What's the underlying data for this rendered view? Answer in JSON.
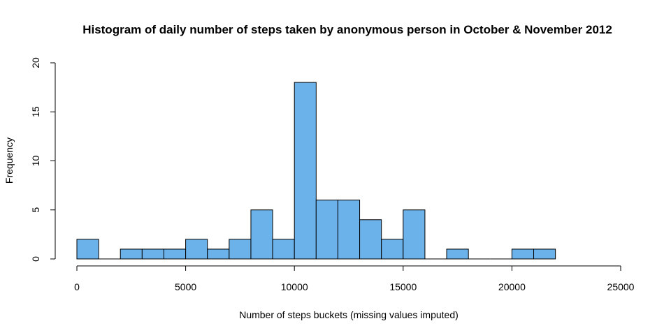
{
  "chart_data": {
    "type": "bar",
    "title": "Histogram of daily number of steps taken by anonymous person in October & November 2012",
    "xlabel": "Number of steps buckets (missing values imputed)",
    "ylabel": "Frequency",
    "xlim": [
      0,
      25000
    ],
    "ylim": [
      0,
      20
    ],
    "xticks": [
      "0",
      "5000",
      "10000",
      "15000",
      "20000",
      "25000"
    ],
    "yticks": [
      "0",
      "5",
      "10",
      "15",
      "20"
    ],
    "bin_width": 1000,
    "bins": [
      {
        "start": 0,
        "end": 1000,
        "count": 2
      },
      {
        "start": 1000,
        "end": 2000,
        "count": 0
      },
      {
        "start": 2000,
        "end": 3000,
        "count": 1
      },
      {
        "start": 3000,
        "end": 4000,
        "count": 1
      },
      {
        "start": 4000,
        "end": 5000,
        "count": 1
      },
      {
        "start": 5000,
        "end": 6000,
        "count": 2
      },
      {
        "start": 6000,
        "end": 7000,
        "count": 1
      },
      {
        "start": 7000,
        "end": 8000,
        "count": 2
      },
      {
        "start": 8000,
        "end": 9000,
        "count": 5
      },
      {
        "start": 9000,
        "end": 10000,
        "count": 2
      },
      {
        "start": 10000,
        "end": 11000,
        "count": 18
      },
      {
        "start": 11000,
        "end": 12000,
        "count": 6
      },
      {
        "start": 12000,
        "end": 13000,
        "count": 6
      },
      {
        "start": 13000,
        "end": 14000,
        "count": 4
      },
      {
        "start": 14000,
        "end": 15000,
        "count": 2
      },
      {
        "start": 15000,
        "end": 16000,
        "count": 5
      },
      {
        "start": 16000,
        "end": 17000,
        "count": 0
      },
      {
        "start": 17000,
        "end": 18000,
        "count": 1
      },
      {
        "start": 18000,
        "end": 19000,
        "count": 0
      },
      {
        "start": 19000,
        "end": 20000,
        "count": 0
      },
      {
        "start": 20000,
        "end": 21000,
        "count": 1
      },
      {
        "start": 21000,
        "end": 22000,
        "count": 1
      }
    ],
    "bar_color": "#6cb2ea",
    "grid": false
  }
}
